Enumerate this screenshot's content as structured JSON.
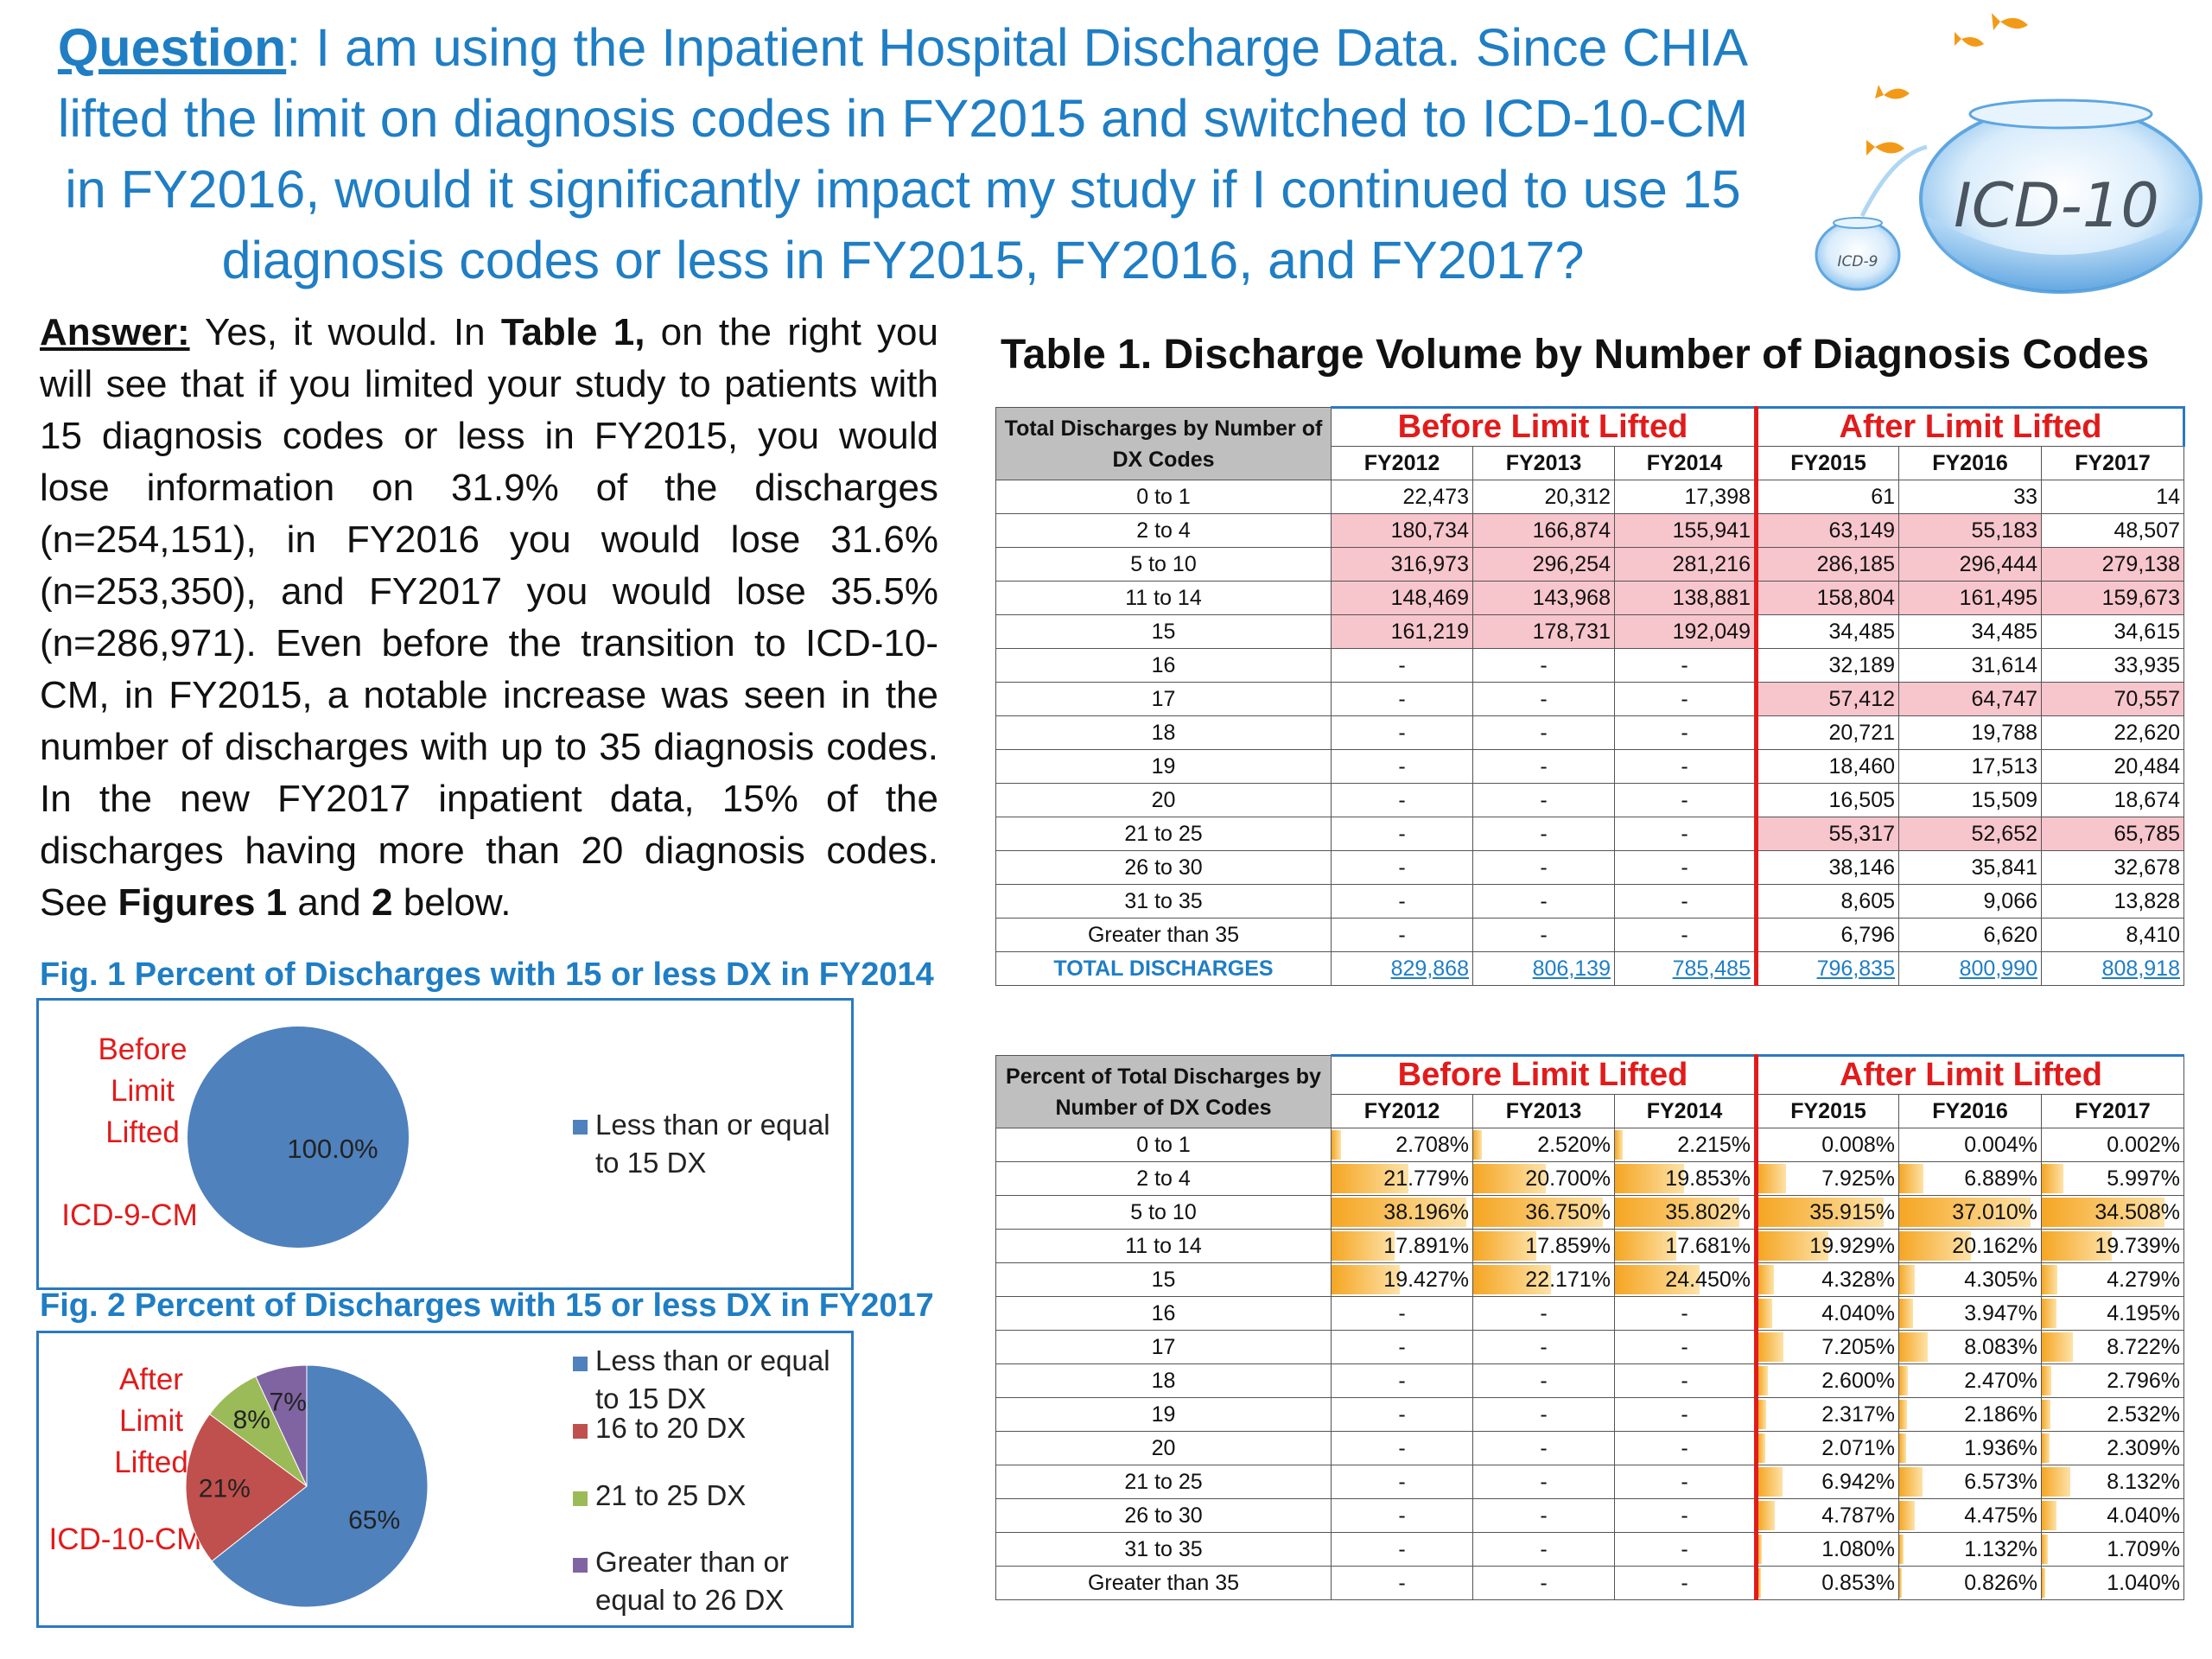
{
  "question": {
    "label": "Question",
    "text": ":  I am using the Inpatient Hospital Discharge Data.  Since CHIA lifted the limit on diagnosis codes in FY2015 and switched to ICD-10-CM in FY2016, would it significantly impact my study if I continued to use 15 diagnosis codes or less in FY2015, FY2016, and FY2017?"
  },
  "logo": {
    "big_bowl_text": "ICD-10",
    "small_bowl_text": "ICD-9",
    "icon": "fishbowl-icon"
  },
  "answer": {
    "label": "Answer:",
    "p1": "  Yes, it would. In ",
    "b1": "Table 1,",
    "p2": " on the right you will see that if you limited your study to patients with 15 diagnosis codes or less in FY2015, you would lose information on 31.9% of the discharges (n=254,151), in FY2016 you would lose 31.6% (n=253,350), and FY2017 you would lose 35.5% (n=286,971).  Even before the transition to ICD-10-CM, in FY2015, a notable increase was seen in the number of discharges with up to 35 diagnosis codes. In the new FY2017 inpatient data, 15% of the discharges having more than 20 diagnosis codes.  See ",
    "b2": "Figures 1",
    "p3": " and ",
    "b3": "2",
    "p4": " below."
  },
  "fig1": {
    "title": "Fig. 1 Percent of Discharges with 15 or less DX in FY2014",
    "label_top": [
      "Before",
      "Limit",
      "Lifted"
    ],
    "label_bottom": "ICD-9-CM",
    "slice_label": "100.0%",
    "legend": [
      "Less than or equal",
      "to 15 DX"
    ]
  },
  "fig2": {
    "title": "Fig. 2 Percent of Discharges with 15 or less DX in FY2017",
    "label_top": [
      "After",
      "Limit",
      "Lifted"
    ],
    "label_bottom": "ICD-10-CM",
    "slice_labels": [
      "65%",
      "21%",
      "8%",
      "7%"
    ],
    "legend": [
      [
        "Less than or equal",
        "to 15 DX"
      ],
      [
        "16 to 20 DX"
      ],
      [
        "21 to 25 DX"
      ],
      [
        "Greater than or",
        "equal to 26 DX"
      ]
    ]
  },
  "chart_data": [
    {
      "type": "pie",
      "title": "Fig. 1 Percent of Discharges with 15 or less DX in FY2014",
      "categories": [
        "Less than or equal to 15 DX"
      ],
      "values": [
        100.0
      ],
      "colors": [
        "#4f81bd"
      ]
    },
    {
      "type": "pie",
      "title": "Fig. 2 Percent of Discharges with 15 or less DX in FY2017",
      "categories": [
        "Less than or equal to 15 DX",
        "16 to 20 DX",
        "21 to 25 DX",
        "Greater than or equal to 26 DX"
      ],
      "values": [
        65,
        21,
        8,
        7
      ],
      "colors": [
        "#4f81bd",
        "#c0504d",
        "#9bbb59",
        "#8064a2"
      ]
    }
  ],
  "table_title": "Table 1. Discharge Volume by Number of Diagnosis Codes",
  "table1": {
    "header": "Total Discharges by Number of DX Codes",
    "group_before": "Before Limit Lifted",
    "group_after": "After Limit Lifted",
    "years": [
      "FY2012",
      "FY2013",
      "FY2014",
      "FY2015",
      "FY2016",
      "FY2017"
    ],
    "rows": [
      {
        "label": "0 to 1",
        "values": [
          "22,473",
          "20,312",
          "17,398",
          "61",
          "33",
          "14"
        ],
        "hi": [
          0,
          0,
          0,
          0,
          0,
          0
        ]
      },
      {
        "label": "2 to 4",
        "values": [
          "180,734",
          "166,874",
          "155,941",
          "63,149",
          "55,183",
          "48,507"
        ],
        "hi": [
          1,
          1,
          1,
          1,
          1,
          0
        ]
      },
      {
        "label": "5 to 10",
        "values": [
          "316,973",
          "296,254",
          "281,216",
          "286,185",
          "296,444",
          "279,138"
        ],
        "hi": [
          1,
          1,
          1,
          1,
          1,
          1
        ]
      },
      {
        "label": "11 to 14",
        "values": [
          "148,469",
          "143,968",
          "138,881",
          "158,804",
          "161,495",
          "159,673"
        ],
        "hi": [
          1,
          1,
          1,
          1,
          1,
          1
        ]
      },
      {
        "label": "15",
        "values": [
          "161,219",
          "178,731",
          "192,049",
          "34,485",
          "34,485",
          "34,615"
        ],
        "hi": [
          1,
          1,
          1,
          0,
          0,
          0
        ]
      },
      {
        "label": "16",
        "values": [
          "-",
          "-",
          "-",
          "32,189",
          "31,614",
          "33,935"
        ],
        "hi": [
          0,
          0,
          0,
          0,
          0,
          0
        ]
      },
      {
        "label": "17",
        "values": [
          "-",
          "-",
          "-",
          "57,412",
          "64,747",
          "70,557"
        ],
        "hi": [
          0,
          0,
          0,
          1,
          1,
          1
        ]
      },
      {
        "label": "18",
        "values": [
          "-",
          "-",
          "-",
          "20,721",
          "19,788",
          "22,620"
        ],
        "hi": [
          0,
          0,
          0,
          0,
          0,
          0
        ]
      },
      {
        "label": "19",
        "values": [
          "-",
          "-",
          "-",
          "18,460",
          "17,513",
          "20,484"
        ],
        "hi": [
          0,
          0,
          0,
          0,
          0,
          0
        ]
      },
      {
        "label": "20",
        "values": [
          "-",
          "-",
          "-",
          "16,505",
          "15,509",
          "18,674"
        ],
        "hi": [
          0,
          0,
          0,
          0,
          0,
          0
        ]
      },
      {
        "label": "21 to 25",
        "values": [
          "-",
          "-",
          "-",
          "55,317",
          "52,652",
          "65,785"
        ],
        "hi": [
          0,
          0,
          0,
          1,
          1,
          1
        ]
      },
      {
        "label": "26 to 30",
        "values": [
          "-",
          "-",
          "-",
          "38,146",
          "35,841",
          "32,678"
        ],
        "hi": [
          0,
          0,
          0,
          0,
          0,
          0
        ]
      },
      {
        "label": "31 to 35",
        "values": [
          "-",
          "-",
          "-",
          "8,605",
          "9,066",
          "13,828"
        ],
        "hi": [
          0,
          0,
          0,
          0,
          0,
          0
        ]
      },
      {
        "label": "Greater than 35",
        "values": [
          "-",
          "-",
          "-",
          "6,796",
          "6,620",
          "8,410"
        ],
        "hi": [
          0,
          0,
          0,
          0,
          0,
          0
        ]
      }
    ],
    "total_label": "TOTAL DISCHARGES",
    "totals": [
      "829,868",
      "806,139",
      "785,485",
      "796,835",
      "800,990",
      "808,918"
    ]
  },
  "table2": {
    "header": "Percent of Total Discharges by Number of DX Codes",
    "group_before": "Before Limit Lifted",
    "group_after": "After Limit Lifted",
    "years": [
      "FY2012",
      "FY2013",
      "FY2014",
      "FY2015",
      "FY2016",
      "FY2017"
    ],
    "rows": [
      {
        "label": "0 to 1",
        "values": [
          "2.708%",
          "2.520%",
          "2.215%",
          "0.008%",
          "0.004%",
          "0.002%"
        ]
      },
      {
        "label": "2 to 4",
        "values": [
          "21.779%",
          "20.700%",
          "19.853%",
          "7.925%",
          "6.889%",
          "5.997%"
        ]
      },
      {
        "label": "5 to 10",
        "values": [
          "38.196%",
          "36.750%",
          "35.802%",
          "35.915%",
          "37.010%",
          "34.508%"
        ]
      },
      {
        "label": "11 to 14",
        "values": [
          "17.891%",
          "17.859%",
          "17.681%",
          "19.929%",
          "20.162%",
          "19.739%"
        ]
      },
      {
        "label": "15",
        "values": [
          "19.427%",
          "22.171%",
          "24.450%",
          "4.328%",
          "4.305%",
          "4.279%"
        ]
      },
      {
        "label": "16",
        "values": [
          "-",
          "-",
          "-",
          "4.040%",
          "3.947%",
          "4.195%"
        ]
      },
      {
        "label": "17",
        "values": [
          "-",
          "-",
          "-",
          "7.205%",
          "8.083%",
          "8.722%"
        ]
      },
      {
        "label": "18",
        "values": [
          "-",
          "-",
          "-",
          "2.600%",
          "2.470%",
          "2.796%"
        ]
      },
      {
        "label": "19",
        "values": [
          "-",
          "-",
          "-",
          "2.317%",
          "2.186%",
          "2.532%"
        ]
      },
      {
        "label": "20",
        "values": [
          "-",
          "-",
          "-",
          "2.071%",
          "1.936%",
          "2.309%"
        ]
      },
      {
        "label": "21 to 25",
        "values": [
          "-",
          "-",
          "-",
          "6.942%",
          "6.573%",
          "8.132%"
        ]
      },
      {
        "label": "26 to 30",
        "values": [
          "-",
          "-",
          "-",
          "4.787%",
          "4.475%",
          "4.040%"
        ]
      },
      {
        "label": "31 to 35",
        "values": [
          "-",
          "-",
          "-",
          "1.080%",
          "1.132%",
          "1.709%"
        ]
      },
      {
        "label": "Greater than 35",
        "values": [
          "-",
          "-",
          "-",
          "0.853%",
          "0.826%",
          "1.040%"
        ]
      }
    ]
  },
  "colors": {
    "accent_blue": "#1f7ec4",
    "highlight_red": "#e11b1b",
    "cell_pink": "#f7c5cc",
    "header_gray": "#bfbfbf",
    "databar_orange": "#f5a623"
  }
}
